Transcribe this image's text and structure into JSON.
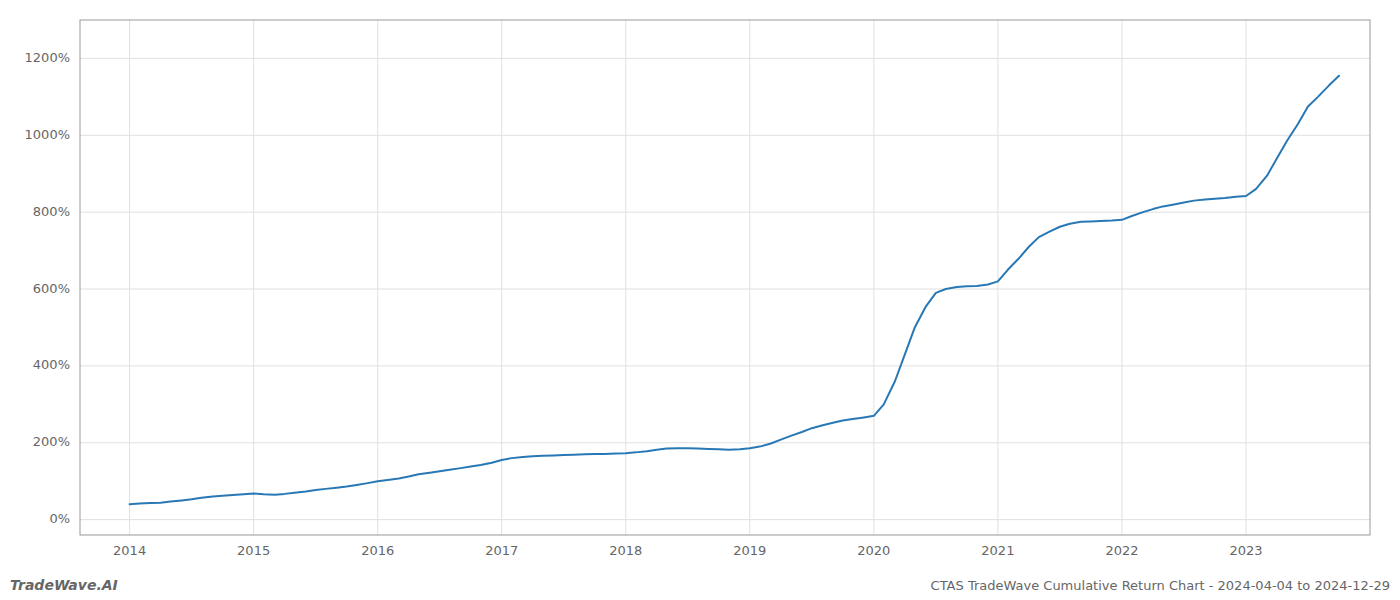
{
  "chart_data": {
    "type": "line",
    "title": "CTAS TradeWave Cumulative Return Chart - 2024-04-04 to 2024-12-29",
    "annotations": [
      "TradeWave.AI"
    ],
    "color": "#2878b5",
    "grid": true,
    "xlim": [
      2013.6,
      2024.0
    ],
    "ylim": [
      -40,
      1300
    ],
    "xticks": [
      2014,
      2015,
      2016,
      2017,
      2018,
      2019,
      2020,
      2021,
      2022,
      2023
    ],
    "yticks": [
      {
        "value": 0,
        "label": "0%"
      },
      {
        "value": 200,
        "label": "200%"
      },
      {
        "value": 400,
        "label": "400%"
      },
      {
        "value": 600,
        "label": "600%"
      },
      {
        "value": 800,
        "label": "800%"
      },
      {
        "value": 1000,
        "label": "1000%"
      },
      {
        "value": 1200,
        "label": "1200%"
      }
    ],
    "x": [
      2014.0,
      2014.08,
      2014.17,
      2014.25,
      2014.33,
      2014.42,
      2014.5,
      2014.58,
      2014.67,
      2014.75,
      2014.83,
      2014.92,
      2015.0,
      2015.08,
      2015.17,
      2015.25,
      2015.33,
      2015.42,
      2015.5,
      2015.58,
      2015.67,
      2015.75,
      2015.83,
      2015.92,
      2016.0,
      2016.08,
      2016.17,
      2016.25,
      2016.33,
      2016.42,
      2016.5,
      2016.58,
      2016.67,
      2016.75,
      2016.83,
      2016.92,
      2017.0,
      2017.08,
      2017.17,
      2017.25,
      2017.33,
      2017.42,
      2017.5,
      2017.58,
      2017.67,
      2017.75,
      2017.83,
      2017.92,
      2018.0,
      2018.08,
      2018.17,
      2018.25,
      2018.33,
      2018.42,
      2018.5,
      2018.58,
      2018.67,
      2018.75,
      2018.83,
      2018.92,
      2019.0,
      2019.08,
      2019.17,
      2019.25,
      2019.33,
      2019.42,
      2019.5,
      2019.58,
      2019.67,
      2019.75,
      2019.83,
      2019.92,
      2020.0,
      2020.08,
      2020.17,
      2020.25,
      2020.33,
      2020.42,
      2020.5,
      2020.58,
      2020.67,
      2020.75,
      2020.83,
      2020.92,
      2021.0,
      2021.08,
      2021.17,
      2021.25,
      2021.33,
      2021.42,
      2021.5,
      2021.58,
      2021.67,
      2021.75,
      2021.83,
      2021.92,
      2022.0,
      2022.08,
      2022.17,
      2022.25,
      2022.33,
      2022.42,
      2022.5,
      2022.58,
      2022.67,
      2022.75,
      2022.83,
      2022.92,
      2023.0,
      2023.08,
      2023.17,
      2023.25,
      2023.33,
      2023.42,
      2023.5,
      2023.58,
      2023.67,
      2023.75
    ],
    "values": [
      40,
      42,
      43,
      44,
      47,
      50,
      53,
      57,
      60,
      62,
      64,
      66,
      68,
      66,
      65,
      67,
      70,
      73,
      77,
      80,
      83,
      86,
      90,
      95,
      100,
      103,
      107,
      112,
      118,
      122,
      126,
      130,
      134,
      138,
      142,
      148,
      155,
      160,
      163,
      165,
      166,
      167,
      168,
      169,
      170,
      171,
      171,
      172,
      173,
      175,
      178,
      182,
      185,
      186,
      186,
      185,
      184,
      183,
      182,
      183,
      186,
      190,
      198,
      208,
      218,
      228,
      238,
      245,
      252,
      258,
      262,
      266,
      270,
      300,
      360,
      430,
      500,
      555,
      590,
      600,
      605,
      607,
      608,
      612,
      620,
      650,
      680,
      710,
      735,
      750,
      762,
      770,
      775,
      776,
      777,
      778,
      780,
      790,
      800,
      808,
      815,
      820,
      825,
      830,
      833,
      835,
      837,
      840,
      842,
      860,
      895,
      940,
      985,
      1030,
      1075,
      1100,
      1130,
      1155
    ]
  }
}
